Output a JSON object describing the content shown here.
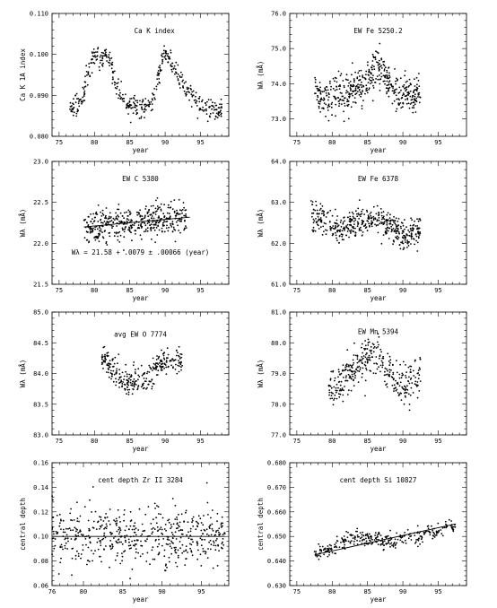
{
  "chart_data": [
    {
      "type": "scatter",
      "title": "Ca K index",
      "xlabel": "year",
      "ylabel": "Ca K 1A index",
      "xlim": [
        74,
        99
      ],
      "ylim": [
        0.08,
        0.11
      ],
      "xticks": [
        75,
        80,
        85,
        90,
        95
      ],
      "yticks": [
        0.08,
        0.09,
        0.1,
        0.11
      ],
      "ytick_labels": [
        "0.080",
        "0.090",
        "0.100",
        "0.110"
      ],
      "grid": false,
      "series": [
        {
          "x": [
            76.5,
            77.5,
            78.5,
            79.3,
            80.0,
            80.7,
            81.5,
            82.2,
            83.0,
            84.0,
            85.0,
            86.0,
            87.0,
            87.7,
            88.4,
            89.0,
            89.5,
            90.0,
            90.5,
            91.0,
            91.6,
            92.2,
            93.0,
            94.0,
            95.0,
            96.0,
            97.0,
            98.0
          ],
          "y": [
            0.087,
            0.0875,
            0.0905,
            0.097,
            0.1,
            0.0985,
            0.1,
            0.0985,
            0.093,
            0.089,
            0.0875,
            0.087,
            0.0868,
            0.0875,
            0.089,
            0.094,
            0.099,
            0.1005,
            0.0995,
            0.097,
            0.096,
            0.094,
            0.0915,
            0.0895,
            0.088,
            0.087,
            0.0865,
            0.0868
          ],
          "noise": 0.0012,
          "per_point": 16
        }
      ]
    },
    {
      "type": "scatter",
      "title": "EW Fe 5250.2",
      "xlabel": "year",
      "ylabel": "Wλ (mÅ)",
      "xlim": [
        74,
        99
      ],
      "ylim": [
        72.5,
        76.0
      ],
      "xticks": [
        75,
        80,
        85,
        90,
        95
      ],
      "yticks": [
        73.0,
        74.0,
        75.0,
        76.0
      ],
      "ytick_labels": [
        "73.0",
        "74.0",
        "75.0",
        "76.0"
      ],
      "grid": false,
      "series": [
        {
          "x": [
            77.5,
            78.5,
            79.5,
            80.5,
            81.5,
            82.5,
            83.5,
            84.5,
            85.5,
            86.5,
            87.5,
            88.5,
            89.5,
            90.5,
            91.5,
            92.5
          ],
          "y": [
            73.9,
            73.6,
            73.6,
            73.7,
            73.6,
            73.8,
            73.9,
            74.0,
            74.3,
            74.5,
            74.2,
            73.9,
            73.6,
            73.8,
            73.7,
            73.7
          ],
          "noise": 0.28,
          "per_point": 30
        }
      ]
    },
    {
      "type": "scatter",
      "title": "EW C 5380",
      "xlabel": "year",
      "ylabel": "Wλ (mÅ)",
      "xlim": [
        74,
        99
      ],
      "ylim": [
        21.5,
        23.0
      ],
      "xticks": [
        75,
        80,
        85,
        90,
        95
      ],
      "yticks": [
        21.5,
        22.0,
        22.5,
        23.0
      ],
      "ytick_labels": [
        "21.5",
        "22.0",
        "22.5",
        "23.0"
      ],
      "grid": false,
      "annotation": "Wλ = 21.58 + .0079 ± .00066 (year)",
      "trend": {
        "slope": 0.0079,
        "intercept": 21.58,
        "x_range": [
          78.5,
          93.5
        ]
      },
      "series": [
        {
          "x": [
            78.5,
            80.0,
            81.5,
            83.0,
            84.5,
            86.0,
            87.5,
            89.0,
            90.5,
            92.0,
            93.0
          ],
          "y": [
            22.2,
            22.22,
            22.23,
            22.24,
            22.25,
            22.26,
            22.28,
            22.29,
            22.3,
            22.31,
            22.31
          ],
          "noise": 0.1,
          "per_point": 40
        }
      ]
    },
    {
      "type": "scatter",
      "title": "EW Fe 6378",
      "xlabel": "year",
      "ylabel": "Wλ (mÅ)",
      "xlim": [
        74,
        99
      ],
      "ylim": [
        61.0,
        64.0
      ],
      "xticks": [
        75,
        80,
        85,
        90,
        95
      ],
      "yticks": [
        61.0,
        62.0,
        63.0,
        64.0
      ],
      "ytick_labels": [
        "61.0",
        "62.0",
        "63.0",
        "64.0"
      ],
      "grid": false,
      "series": [
        {
          "x": [
            77.0,
            78.0,
            79.0,
            80.0,
            81.0,
            82.0,
            83.0,
            84.0,
            85.0,
            86.0,
            87.0,
            88.0,
            89.0,
            90.0,
            91.0,
            92.5
          ],
          "y": [
            62.75,
            62.6,
            62.55,
            62.4,
            62.35,
            62.4,
            62.5,
            62.5,
            62.55,
            62.55,
            62.5,
            62.45,
            62.35,
            62.15,
            62.2,
            62.3
          ],
          "noise": 0.17,
          "per_point": 30
        }
      ]
    },
    {
      "type": "scatter",
      "title": "avg EW O 7774",
      "xlabel": "year",
      "ylabel": "Wλ (mÅ)",
      "xlim": [
        74,
        99
      ],
      "ylim": [
        83.0,
        85.0
      ],
      "xticks": [
        75,
        80,
        85,
        90,
        95
      ],
      "yticks": [
        83.0,
        83.5,
        84.0,
        84.5,
        85.0
      ],
      "ytick_labels": [
        "83.0",
        "83.5",
        "84.0",
        "84.5",
        "85.0"
      ],
      "grid": false,
      "series": [
        {
          "x": [
            81.0,
            82.0,
            83.0,
            84.0,
            85.0,
            86.0,
            87.0,
            88.0,
            89.0,
            90.0,
            91.0,
            92.5
          ],
          "y": [
            84.25,
            84.2,
            84.0,
            83.9,
            83.85,
            83.9,
            83.9,
            84.0,
            84.15,
            84.2,
            84.2,
            84.2
          ],
          "noise": 0.11,
          "per_point": 25
        }
      ]
    },
    {
      "type": "scatter",
      "title": "EW Mn 5394",
      "xlabel": "year",
      "ylabel": "Wλ (mÅ)",
      "xlim": [
        74,
        99
      ],
      "ylim": [
        77.0,
        81.0
      ],
      "xticks": [
        75,
        80,
        85,
        90,
        95
      ],
      "yticks": [
        77.0,
        78.0,
        79.0,
        80.0,
        81.0
      ],
      "ytick_labels": [
        "77.0",
        "78.0",
        "79.0",
        "80.0",
        "81.0"
      ],
      "grid": false,
      "series": [
        {
          "x": [
            79.5,
            80.5,
            81.5,
            82.5,
            83.5,
            84.5,
            85.5,
            86.5,
            87.5,
            88.5,
            89.5,
            90.5,
            91.5,
            92.5
          ],
          "y": [
            78.6,
            78.5,
            78.8,
            79.0,
            79.2,
            79.4,
            79.6,
            79.6,
            79.4,
            79.0,
            78.7,
            78.6,
            78.8,
            79.0
          ],
          "noise": 0.32,
          "per_point": 25
        }
      ]
    },
    {
      "type": "scatter",
      "title": "cent depth Zr II 3284",
      "xlabel": "year",
      "ylabel": "central depth",
      "xlim": [
        76,
        98.5
      ],
      "ylim": [
        0.06,
        0.16
      ],
      "xticks": [
        76,
        80,
        85,
        90,
        95
      ],
      "yticks": [
        0.06,
        0.08,
        0.1,
        0.12,
        0.14,
        0.16
      ],
      "ytick_labels": [
        "0.06",
        "0.08",
        "0.10",
        "0.12",
        "0.14",
        "0.16"
      ],
      "grid": false,
      "trend": {
        "slope": 0,
        "intercept": 0.1,
        "x_range": [
          76.0,
          98.0
        ]
      },
      "series": [
        {
          "x": [
            76.0,
            78.0,
            80.0,
            82.0,
            84.0,
            86.0,
            88.0,
            90.0,
            92.0,
            94.0,
            96.0,
            98.0
          ],
          "y": [
            0.1,
            0.1,
            0.1,
            0.1,
            0.1,
            0.1,
            0.1,
            0.1,
            0.1,
            0.1,
            0.1,
            0.1
          ],
          "noise": 0.011,
          "per_point": 45
        }
      ]
    },
    {
      "type": "scatter",
      "title": "cent depth Si 10827",
      "xlabel": "year",
      "ylabel": "central depth",
      "xlim": [
        74,
        99
      ],
      "ylim": [
        0.63,
        0.68
      ],
      "xticks": [
        75,
        80,
        85,
        90,
        95
      ],
      "yticks": [
        0.63,
        0.64,
        0.65,
        0.66,
        0.67,
        0.68
      ],
      "ytick_labels": [
        "0.630",
        "0.640",
        "0.650",
        "0.660",
        "0.670",
        "0.680"
      ],
      "grid": false,
      "trend": {
        "slope": 0.00063,
        "intercept": 0.5937,
        "x_range": [
          77.5,
          97.5
        ]
      },
      "series": [
        {
          "x": [
            77.5,
            78.5,
            79.5,
            80.5,
            81.5,
            82.5,
            83.5,
            84.5,
            85.5,
            86.5,
            87.5,
            88.5,
            89.5,
            90.5,
            91.5,
            92.5,
            93.5,
            94.5,
            95.5,
            96.5,
            97.5
          ],
          "y": [
            0.643,
            0.644,
            0.644,
            0.646,
            0.648,
            0.649,
            0.649,
            0.649,
            0.649,
            0.649,
            0.649,
            0.648,
            0.649,
            0.65,
            0.65,
            0.65,
            0.652,
            0.651,
            0.653,
            0.655,
            0.652
          ],
          "noise": 0.0015,
          "per_point": 15
        }
      ]
    }
  ]
}
